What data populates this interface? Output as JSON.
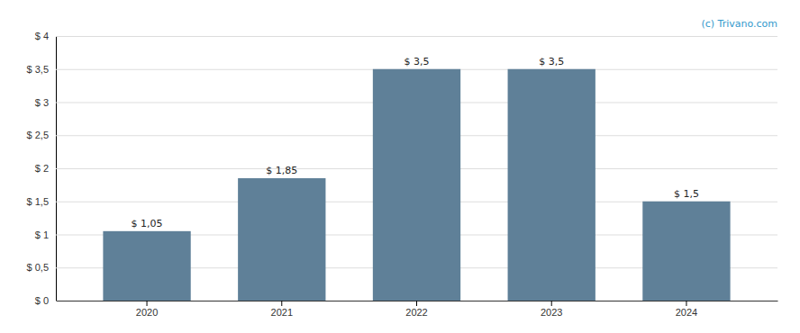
{
  "chart_data": {
    "type": "bar",
    "categories": [
      "2020",
      "2021",
      "2022",
      "2023",
      "2024"
    ],
    "values": [
      1.05,
      1.85,
      3.5,
      3.5,
      1.5
    ],
    "value_labels": [
      "$ 1,05",
      "$ 1,85",
      "$ 3,5",
      "$ 3,5",
      "$ 1,5"
    ],
    "color": "#5f8098",
    "ylim": [
      0,
      4.0
    ],
    "yticks": [
      {
        "value": 0,
        "label": "$ 0"
      },
      {
        "value": 0.5,
        "label": "$ 0,5"
      },
      {
        "value": 1.0,
        "label": "$ 1"
      },
      {
        "value": 1.5,
        "label": "$ 1,5"
      },
      {
        "value": 2.0,
        "label": "$ 2"
      },
      {
        "value": 2.5,
        "label": "$ 2,5"
      },
      {
        "value": 3.0,
        "label": "$ 3"
      },
      {
        "value": 3.5,
        "label": "$ 3,5"
      },
      {
        "value": 4.0,
        "label": "$ 4"
      }
    ],
    "grid": true,
    "data_labels": true,
    "annotations": [
      {
        "text": "(c) Trivano.com",
        "color": "#3399cc"
      }
    ]
  }
}
